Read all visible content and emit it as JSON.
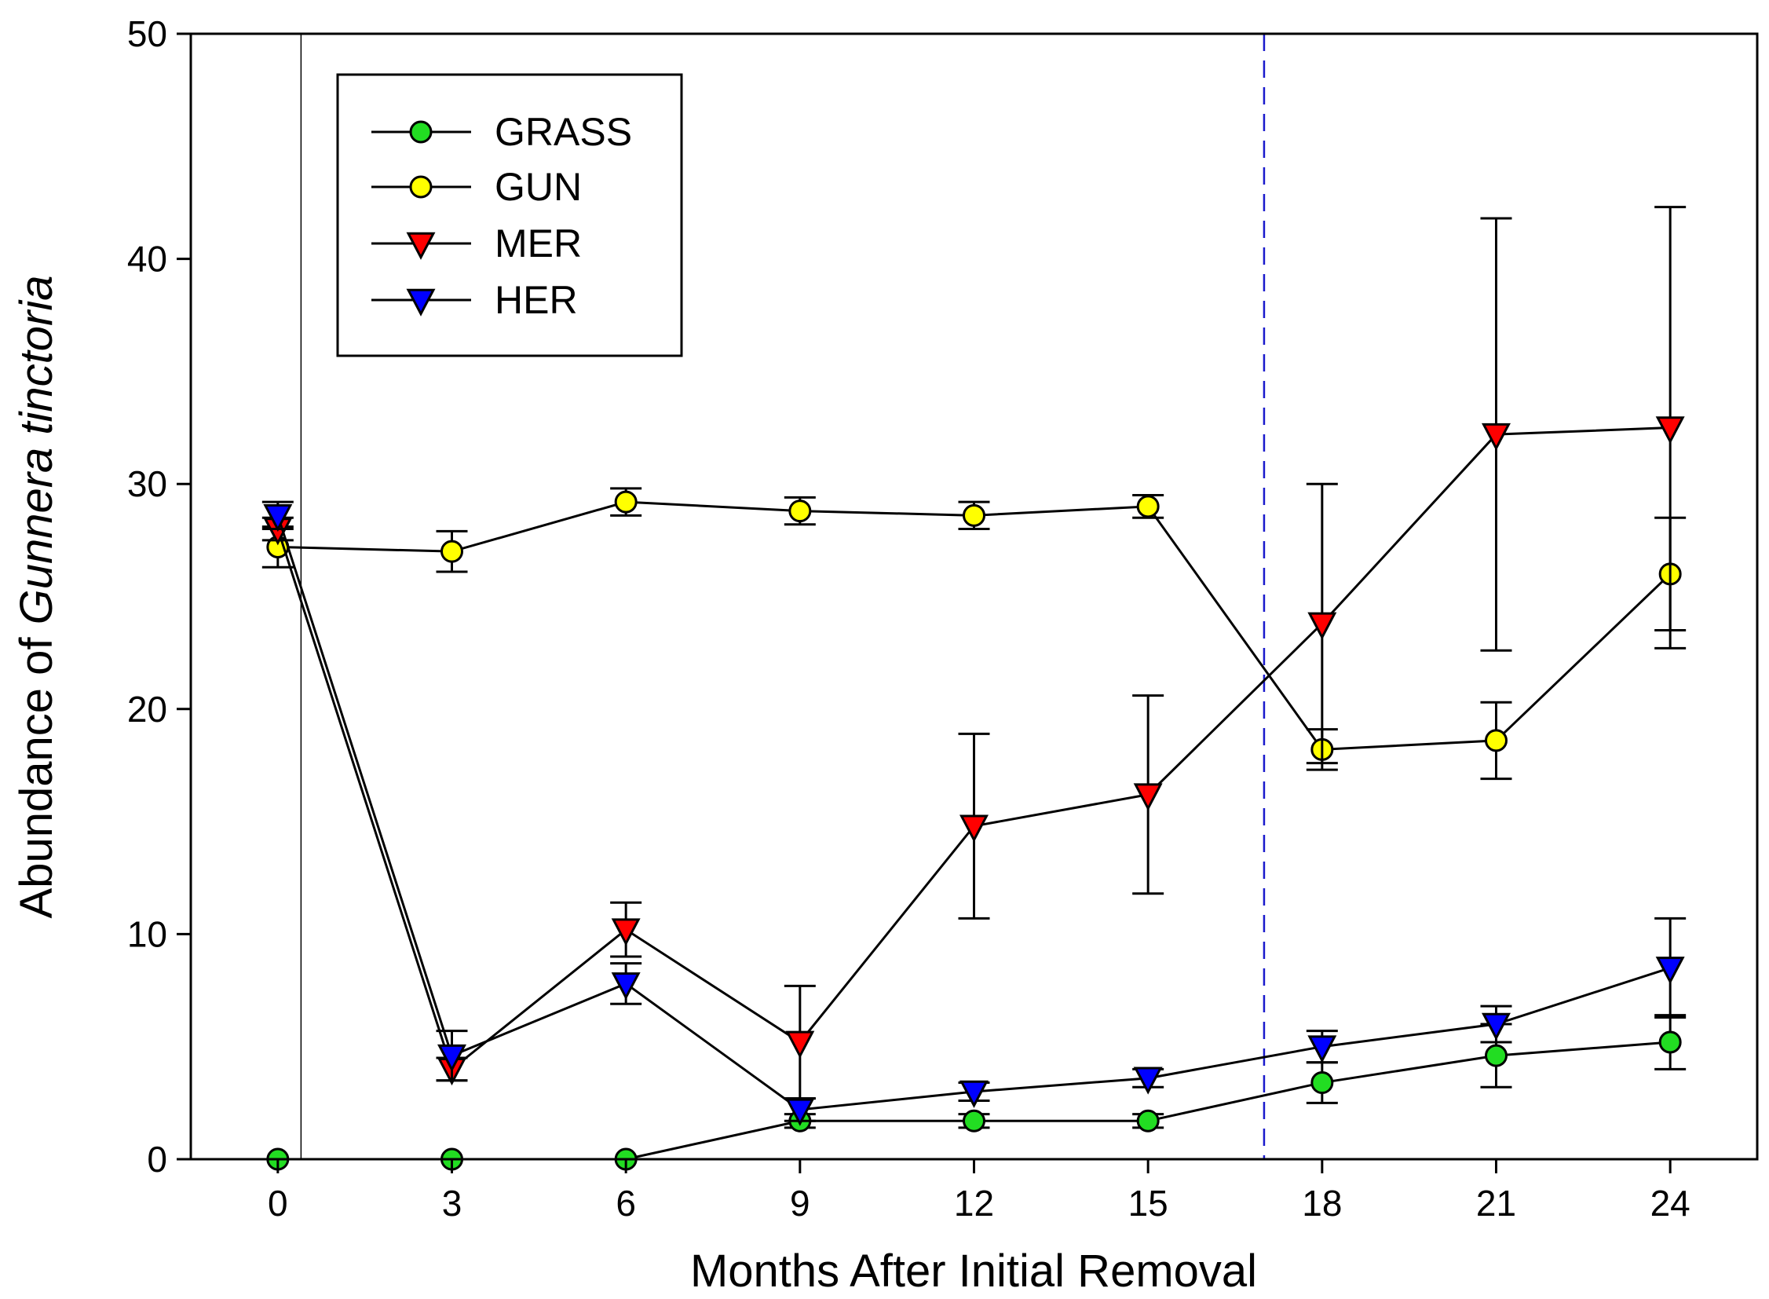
{
  "chart_data": {
    "type": "line",
    "title": "",
    "xlabel": "Months After Initial Removal",
    "ylabel_prefix": "Abundance of ",
    "ylabel_species": "Gunnera tinctoria",
    "x": [
      0,
      3,
      6,
      9,
      12,
      15,
      18,
      21,
      24
    ],
    "xlim": [
      -1.5,
      25.5
    ],
    "ylim": [
      0,
      50
    ],
    "xticks": [
      0,
      3,
      6,
      9,
      12,
      15,
      18,
      21,
      24
    ],
    "yticks": [
      0,
      10,
      20,
      30,
      40,
      50
    ],
    "grid": false,
    "legend_position": "top-left",
    "reference_lines": [
      {
        "x": 0.4,
        "style": "solid",
        "color": "#000000"
      },
      {
        "x": 17,
        "style": "dashed",
        "color": "#1a1acc"
      }
    ],
    "series": [
      {
        "name": "GRASS",
        "marker": "circle",
        "color": "#22dd22",
        "values": [
          0,
          0,
          0,
          1.7,
          1.7,
          1.7,
          3.4,
          4.6,
          5.2
        ],
        "errors": [
          0,
          0,
          0,
          0.3,
          0.3,
          0.3,
          0.9,
          1.4,
          1.2
        ]
      },
      {
        "name": "GUN",
        "marker": "circle",
        "color": "#ffff00",
        "values": [
          27.2,
          27.0,
          29.2,
          28.8,
          28.6,
          29.0,
          18.2,
          18.6,
          26.0
        ],
        "errors": [
          0.9,
          0.9,
          0.6,
          0.6,
          0.6,
          0.5,
          0.9,
          1.7,
          2.5
        ]
      },
      {
        "name": "MER",
        "marker": "triangle-down",
        "color": "#ff0000",
        "values": [
          28.0,
          4.0,
          10.2,
          5.2,
          14.8,
          16.2,
          23.8,
          32.2,
          32.5
        ],
        "errors": [
          0.5,
          0.5,
          1.2,
          2.5,
          4.1,
          4.4,
          6.2,
          9.6,
          9.8
        ]
      },
      {
        "name": "HER",
        "marker": "triangle-down",
        "color": "#0000ff",
        "values": [
          28.6,
          4.6,
          7.8,
          2.2,
          3.0,
          3.6,
          5.0,
          6.0,
          8.5
        ],
        "errors": [
          0.6,
          1.1,
          0.9,
          0.5,
          0.4,
          0.4,
          0.7,
          0.8,
          2.2
        ]
      }
    ]
  }
}
